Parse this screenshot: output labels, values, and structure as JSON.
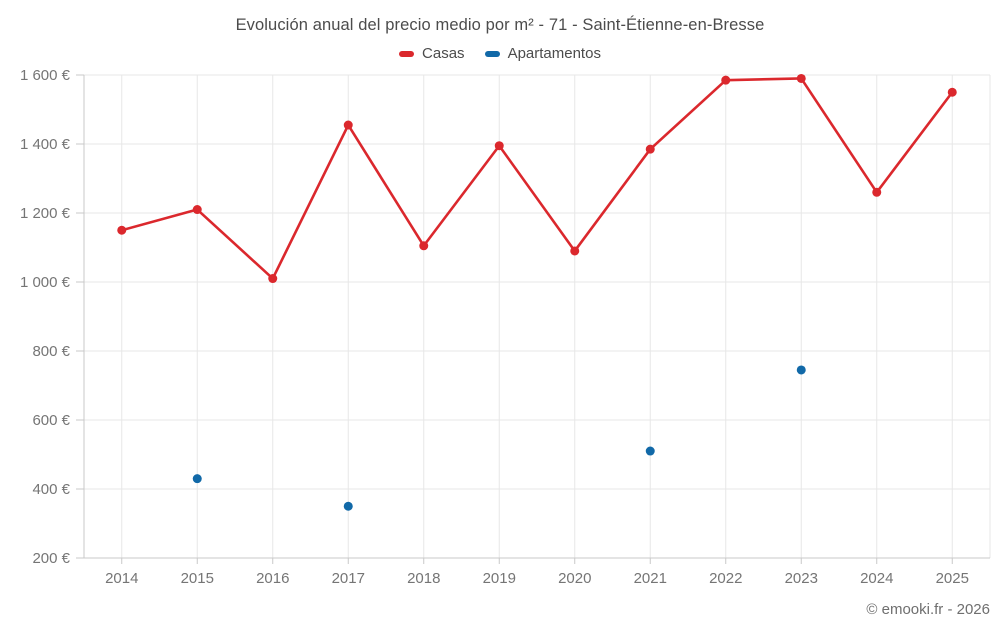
{
  "title": "Evolución anual del precio medio por m² - 71 - Saint-Étienne-en-Bresse",
  "footer": "© emooki.fr - 2026",
  "colors": {
    "casas": "#db282d",
    "apartamentos": "#1169a8",
    "gridline": "#e7e7e7",
    "axis": "#c9c9c9",
    "title_text": "#4c4c4c",
    "axis_text": "#757575"
  },
  "chart_data": {
    "type": "line",
    "title": "Evolución anual del precio medio por m² - 71 - Saint-Étienne-en-Bresse",
    "categories": [
      "2014",
      "2015",
      "2016",
      "2017",
      "2018",
      "2019",
      "2020",
      "2021",
      "2022",
      "2023",
      "2024",
      "2025"
    ],
    "series": [
      {
        "name": "Casas",
        "color": "#db282d",
        "values": [
          1150,
          1210,
          1010,
          1455,
          1105,
          1395,
          1090,
          1385,
          1585,
          1590,
          1260,
          1550
        ]
      },
      {
        "name": "Apartamentos",
        "color": "#1169a8",
        "values": [
          null,
          430,
          null,
          350,
          null,
          null,
          null,
          510,
          null,
          745,
          null,
          null
        ]
      }
    ],
    "xlabel": "",
    "ylabel": "",
    "ylim": [
      200,
      1600
    ],
    "ytick_step": 200,
    "ytick_labels": [
      "200 €",
      "400 €",
      "600 €",
      "800 €",
      "1 000 €",
      "1 200 €",
      "1 400 €",
      "1 600 €"
    ],
    "grid": true,
    "legend_position": "top",
    "gap_breaks_line": true,
    "annotation": "© emooki.fr - 2026"
  }
}
